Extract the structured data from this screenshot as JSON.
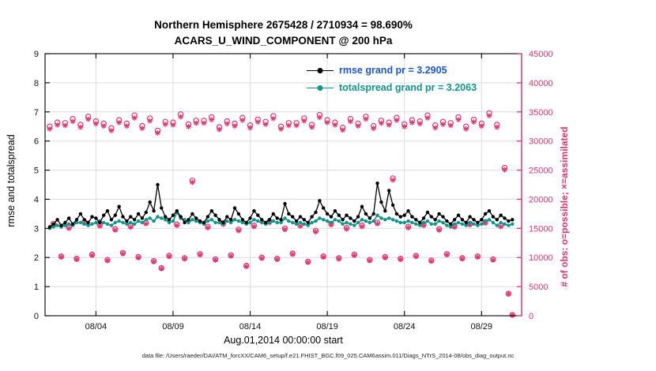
{
  "figure": {
    "footer": "data file: /Users/raeder/DAI/ATM_forcXX/CAM6_setup/f.e21.FHIST_BGC.f09_025.CAM6assim.011/Diags_NTrS_2014-08/obs_diag_output.nc"
  },
  "colors": {
    "obs": "#e8336d",
    "rmse": "#000000",
    "totalspread": "#0f958a",
    "legend_rmse_text": "#1a57d6",
    "grid": "#dcdcdc"
  },
  "chart_data": {
    "type": "line",
    "title": "Northern Hemisphere 2675428 / 2710934 = 98.690%",
    "subtitle": "ACARS_U_WIND_COMPONENT @ 200 hPa",
    "xlabel": "Aug.01,2014 00:00:00 start",
    "ylabel_left": "rmse and totalspread",
    "ylabel_right": "# of obs: o=possible; ×=assimilated",
    "x_start_day": 1.0,
    "x_step_days": 0.25,
    "xlim_days": [
      0.7,
      31.6
    ],
    "x_ticks": [
      {
        "day": 4,
        "label": "08/04"
      },
      {
        "day": 9,
        "label": "08/09"
      },
      {
        "day": 14,
        "label": "08/14"
      },
      {
        "day": 19,
        "label": "08/19"
      },
      {
        "day": 24,
        "label": "08/24"
      },
      {
        "day": 29,
        "label": "08/29"
      }
    ],
    "ylim_left": [
      0,
      9
    ],
    "yticks_left": [
      0,
      1,
      2,
      3,
      4,
      5,
      6,
      7,
      8,
      9
    ],
    "ylim_right": [
      0,
      45000
    ],
    "yticks_right": [
      0,
      5000,
      10000,
      15000,
      20000,
      25000,
      30000,
      35000,
      40000,
      45000
    ],
    "assimilated_pct": 98.69,
    "series": {
      "rmse": {
        "legend": "rmse grand pr = 3.2905",
        "grand_mean": 3.2905,
        "axis": "left",
        "values": [
          3.05,
          3.15,
          3.3,
          3.1,
          3.2,
          3.35,
          3.15,
          3.3,
          3.5,
          3.3,
          3.2,
          3.4,
          3.35,
          3.2,
          3.45,
          3.6,
          3.3,
          3.45,
          3.75,
          3.4,
          3.25,
          3.4,
          3.3,
          3.5,
          3.35,
          3.55,
          3.9,
          3.6,
          4.5,
          3.7,
          3.4,
          3.3,
          3.45,
          3.6,
          3.4,
          3.2,
          3.3,
          3.5,
          3.35,
          3.25,
          3.2,
          3.4,
          3.6,
          3.45,
          3.3,
          3.2,
          3.4,
          3.3,
          3.7,
          3.5,
          3.3,
          3.2,
          3.35,
          3.6,
          3.45,
          3.3,
          3.2,
          3.3,
          3.5,
          3.35,
          3.3,
          3.85,
          3.5,
          3.4,
          3.25,
          3.4,
          3.3,
          3.2,
          3.4,
          3.55,
          3.95,
          3.7,
          3.5,
          3.4,
          3.6,
          3.45,
          3.3,
          3.45,
          3.35,
          3.25,
          3.4,
          3.75,
          3.5,
          3.35,
          3.5,
          4.55,
          3.9,
          3.6,
          4.3,
          3.8,
          3.5,
          3.4,
          3.45,
          3.6,
          3.4,
          3.3,
          3.2,
          3.35,
          3.55,
          3.4,
          3.3,
          3.5,
          3.4,
          3.25,
          3.15,
          3.3,
          3.45,
          3.3,
          3.2,
          3.4,
          3.3,
          3.2,
          3.3,
          3.5,
          3.6,
          3.4,
          3.3,
          3.45,
          3.35,
          3.25,
          3.3
        ]
      },
      "totalspread": {
        "legend": "totalspread grand pr = 3.2063",
        "grand_mean": 3.2063,
        "axis": "left",
        "values": [
          3.0,
          3.05,
          3.1,
          3.05,
          3.1,
          3.15,
          3.1,
          3.2,
          3.2,
          3.15,
          3.1,
          3.15,
          3.2,
          3.25,
          3.2,
          3.15,
          3.1,
          3.2,
          3.25,
          3.2,
          3.15,
          3.2,
          3.15,
          3.25,
          3.2,
          3.3,
          3.35,
          3.25,
          3.4,
          3.35,
          3.3,
          3.2,
          3.25,
          3.55,
          3.35,
          3.3,
          3.2,
          3.3,
          3.25,
          3.2,
          3.15,
          3.25,
          3.3,
          3.2,
          3.2,
          3.15,
          3.25,
          3.2,
          3.3,
          3.25,
          3.2,
          3.15,
          3.2,
          3.3,
          3.25,
          3.2,
          3.15,
          3.2,
          3.25,
          3.2,
          3.2,
          3.35,
          3.25,
          3.2,
          3.15,
          3.2,
          3.15,
          3.1,
          3.2,
          3.25,
          3.35,
          3.3,
          3.25,
          3.2,
          3.3,
          3.25,
          3.15,
          3.2,
          3.15,
          3.1,
          3.2,
          3.3,
          3.25,
          3.2,
          3.25,
          3.45,
          3.35,
          3.3,
          3.35,
          3.3,
          3.25,
          3.2,
          3.2,
          3.25,
          3.2,
          3.15,
          3.1,
          3.2,
          3.25,
          3.15,
          3.15,
          3.25,
          3.2,
          3.1,
          3.05,
          3.15,
          3.2,
          3.15,
          3.1,
          3.2,
          3.15,
          3.1,
          3.15,
          3.25,
          3.3,
          3.2,
          3.1,
          3.2,
          3.15,
          3.1,
          3.15
        ]
      },
      "possible": {
        "marker": "o",
        "axis": "right",
        "values": [
          32500,
          15800,
          33200,
          10200,
          33100,
          15200,
          33800,
          9800,
          32800,
          16100,
          34200,
          10500,
          33400,
          15600,
          33000,
          9600,
          32200,
          14900,
          33600,
          10800,
          33000,
          15400,
          34400,
          10100,
          32600,
          16000,
          33900,
          9400,
          31800,
          8200,
          33300,
          10300,
          33200,
          15700,
          34600,
          9900,
          32900,
          23200,
          33500,
          10600,
          33500,
          15300,
          34100,
          9700,
          32400,
          15900,
          33400,
          10400,
          33000,
          14800,
          34000,
          8600,
          32700,
          15500,
          33700,
          10000,
          33300,
          16200,
          34300,
          9800,
          32500,
          15000,
          33100,
          10700,
          33100,
          15600,
          33900,
          9300,
          32800,
          14600,
          34500,
          10200,
          33600,
          15800,
          33200,
          9900,
          32300,
          15100,
          33800,
          10500,
          33000,
          15500,
          34200,
          9600,
          32600,
          16000,
          33500,
          10100,
          33200,
          23600,
          34000,
          9800,
          32900,
          15300,
          33600,
          10300,
          33400,
          15700,
          34400,
          9500,
          32700,
          14900,
          33300,
          10600,
          33100,
          15400,
          34100,
          9900,
          32500,
          15800,
          33700,
          10200,
          33000,
          16100,
          34800,
          9700,
          32800,
          15500,
          25400,
          3800,
          150
        ]
      },
      "assimilated": {
        "marker": "*",
        "axis": "right",
        "derived_from": "possible",
        "scale": 0.9869
      }
    }
  }
}
